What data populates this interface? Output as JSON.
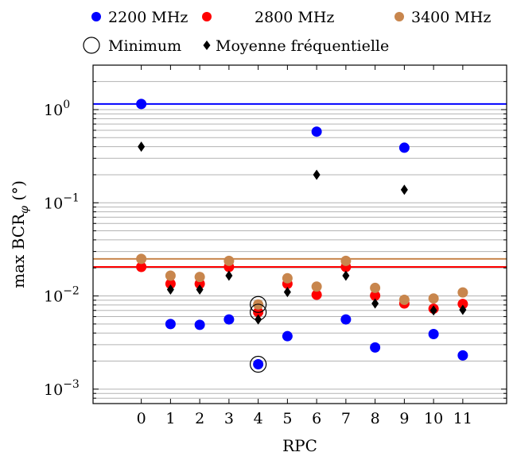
{
  "chart_data": {
    "type": "scatter",
    "xlabel": "RPC",
    "ylabel_main": "max BCR",
    "ylabel_sub": "φ",
    "ylabel_unit": "(°)",
    "y_scale": "log",
    "ylim": [
      0.0007,
      3
    ],
    "xlim": [
      -1.65,
      12.5
    ],
    "grid": "y-minor",
    "legend_position": "top",
    "x_ticks": [
      0,
      1,
      2,
      3,
      4,
      5,
      6,
      7,
      8,
      9,
      10,
      11
    ],
    "x_tick_labels": [
      "0",
      "1",
      "2",
      "3",
      "4",
      "5",
      "6",
      "7",
      "8",
      "9",
      "10",
      "11"
    ],
    "y_ticks": [
      {
        "value": 1,
        "base": "10",
        "exp": "0"
      },
      {
        "value": 0.1,
        "base": "10",
        "exp": "−1"
      },
      {
        "value": 0.01,
        "base": "10",
        "exp": "−2"
      },
      {
        "value": 0.001,
        "base": "10",
        "exp": "−3"
      }
    ],
    "legend": [
      {
        "label": "2200 MHz",
        "marker": "circle",
        "color": "#0000ff"
      },
      {
        "label": "2800 MHz",
        "marker": "circle",
        "color": "#ff0000"
      },
      {
        "label": "3400 MHz",
        "marker": "circle",
        "color": "#c8864d"
      },
      {
        "label": "Minimum",
        "marker": "open-circle",
        "color": "#000000"
      },
      {
        "label": "Moyenne fréquentielle",
        "marker": "diamond",
        "color": "#000000"
      }
    ],
    "series": [
      {
        "name": "2200 MHz",
        "color": "#0000ff",
        "marker": "circle",
        "x": [
          0,
          1,
          2,
          3,
          4,
          5,
          6,
          7,
          8,
          9,
          10,
          11
        ],
        "y": [
          1.15,
          0.005,
          0.0049,
          0.0056,
          0.00185,
          0.0037,
          0.58,
          0.0056,
          0.0028,
          0.39,
          0.0039,
          0.0023
        ]
      },
      {
        "name": "2800 MHz",
        "color": "#ff0000",
        "marker": "circle",
        "x": [
          0,
          1,
          2,
          3,
          4,
          5,
          6,
          7,
          8,
          9,
          10,
          11
        ],
        "y": [
          0.0205,
          0.0135,
          0.0135,
          0.0205,
          0.0067,
          0.0135,
          0.0103,
          0.0205,
          0.0101,
          0.0083,
          0.0073,
          0.0082
        ]
      },
      {
        "name": "3400 MHz",
        "color": "#c8864d",
        "marker": "circle",
        "x": [
          0,
          1,
          2,
          3,
          4,
          5,
          6,
          7,
          8,
          9,
          10,
          11
        ],
        "y": [
          0.025,
          0.0165,
          0.016,
          0.0238,
          0.0081,
          0.0155,
          0.0126,
          0.0238,
          0.0122,
          0.0091,
          0.0094,
          0.0109
        ]
      },
      {
        "name": "Moyenne fréquentielle",
        "color": "#000000",
        "marker": "diamond",
        "x": [
          0,
          1,
          2,
          3,
          4,
          5,
          6,
          7,
          8,
          9,
          10,
          11
        ],
        "y": [
          0.4,
          0.0117,
          0.0117,
          0.0165,
          0.0056,
          0.011,
          0.2,
          0.0165,
          0.0083,
          0.138,
          0.007,
          0.0071
        ]
      }
    ],
    "minimum_markers": [
      {
        "x": 4,
        "y": 0.00185
      },
      {
        "x": 4,
        "y": 0.0067
      },
      {
        "x": 4,
        "y": 0.0081
      }
    ],
    "reference_lines": [
      {
        "y": 1.15,
        "color": "#0000ff"
      },
      {
        "y": 0.0205,
        "color": "#ff0000"
      },
      {
        "y": 0.025,
        "color": "#c8864d"
      }
    ]
  }
}
